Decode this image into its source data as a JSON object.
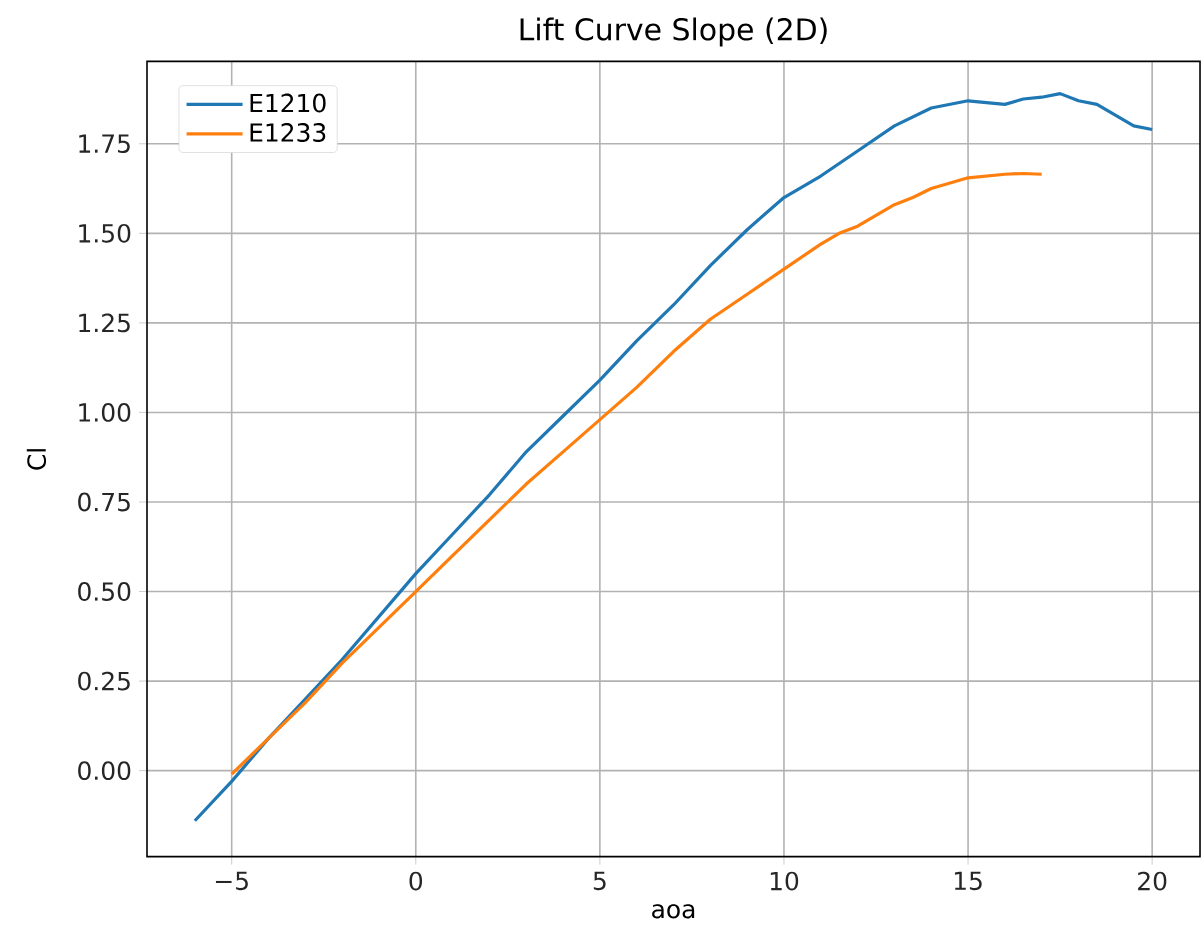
{
  "chart_data": {
    "type": "line",
    "title": "Lift Curve Slope (2D)",
    "xlabel": "aoa",
    "ylabel": "Cl",
    "xlim": [
      -7.3,
      21.3
    ],
    "ylim": [
      -0.24,
      1.98
    ],
    "xticks": [
      {
        "value": -5,
        "label": "−5"
      },
      0,
      5,
      10,
      15,
      20
    ],
    "yticks": [
      {
        "value": 0,
        "label": "0.00"
      },
      {
        "value": 0.25,
        "label": "0.25"
      },
      {
        "value": 0.5,
        "label": "0.50"
      },
      {
        "value": 0.75,
        "label": "0.75"
      },
      {
        "value": 1,
        "label": "1.00"
      },
      {
        "value": 1.25,
        "label": "1.25"
      },
      {
        "value": 1.5,
        "label": "1.50"
      },
      {
        "value": 1.75,
        "label": "1.75"
      }
    ],
    "grid": true,
    "legend": "top left",
    "series": [
      {
        "name": "E1210",
        "color": "#1f77b4",
        "x": [
          -6,
          -5,
          -4,
          -3,
          -2,
          -1,
          0,
          1,
          2,
          3,
          4,
          5,
          6,
          7,
          8,
          9,
          10,
          11,
          12,
          13,
          14,
          15,
          16,
          16.5,
          17,
          17.5,
          18,
          18.5,
          19,
          19.5,
          20
        ],
        "values": [
          -0.14,
          -0.03,
          0.09,
          0.2,
          0.31,
          0.43,
          0.55,
          0.66,
          0.77,
          0.89,
          0.99,
          1.09,
          1.2,
          1.3,
          1.41,
          1.51,
          1.6,
          1.66,
          1.73,
          1.8,
          1.85,
          1.87,
          1.86,
          1.875,
          1.88,
          1.89,
          1.87,
          1.86,
          1.83,
          1.8,
          1.79
        ]
      },
      {
        "name": "E1233",
        "color": "#ff7f0e",
        "x": [
          -5,
          -4,
          -3,
          -2,
          -1,
          0,
          1,
          2,
          3,
          4,
          5,
          6,
          7,
          8,
          9,
          10,
          11,
          11.5,
          12,
          13,
          13.5,
          14,
          15,
          16,
          16.5,
          17
        ],
        "values": [
          -0.01,
          0.09,
          0.19,
          0.3,
          0.4,
          0.5,
          0.6,
          0.7,
          0.8,
          0.89,
          0.98,
          1.07,
          1.17,
          1.26,
          1.33,
          1.4,
          1.47,
          1.5,
          1.52,
          1.58,
          1.6,
          1.625,
          1.655,
          1.665,
          1.667,
          1.665
        ]
      }
    ]
  }
}
